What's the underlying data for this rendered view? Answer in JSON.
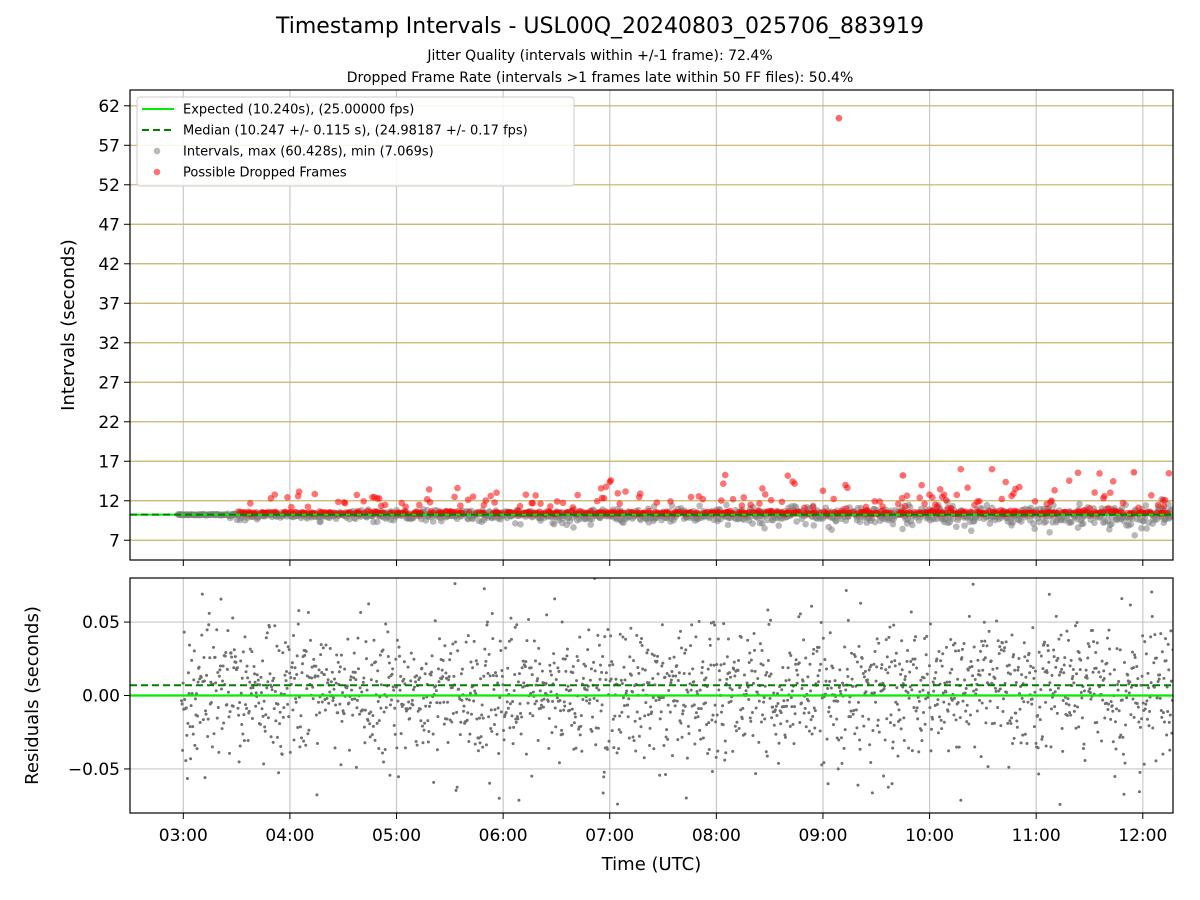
{
  "chart_data": [
    {
      "type": "scatter",
      "title": "Timestamp Intervals - USL00Q_20240803_025706_883919",
      "subtitle_lines": [
        "Jitter Quality (intervals within +/-1 frame): 72.4%",
        "Dropped Frame Rate (intervals >1 frames late within 50 FF files): 50.4%"
      ],
      "ylabel": "Intervals (seconds)",
      "xlabel": "",
      "x_range": [
        "02:30",
        "12:17"
      ],
      "ylim": [
        4.5,
        64
      ],
      "yticks": [
        7,
        12,
        17,
        22,
        27,
        32,
        37,
        42,
        47,
        52,
        57,
        62
      ],
      "xticks": [
        "03:00",
        "04:00",
        "05:00",
        "06:00",
        "07:00",
        "08:00",
        "09:00",
        "10:00",
        "11:00",
        "12:00"
      ],
      "grid": true,
      "legend_placement": "top-left",
      "expected_interval": 10.24,
      "median_interval": 10.247,
      "series": [
        {
          "name": "Expected (10.240s), (25.00000 fps)",
          "type": "line",
          "color": "#00ee00",
          "y": 10.24
        },
        {
          "name": "Median (10.247 +/- 0.115 s), (24.98187 +/- 0.17 fps)",
          "type": "dashed-line",
          "color": "#008000",
          "y": 10.247
        },
        {
          "name": "Intervals, max (60.428s), min (7.069s)",
          "type": "scatter",
          "color": "#808080",
          "max": 60.428,
          "min": 7.069
        },
        {
          "name": "Possible Dropped Frames",
          "type": "scatter",
          "color": "#ff0000",
          "notable_points": [
            {
              "x": "09:09",
              "y": 60.43
            },
            {
              "x": "11:55",
              "y": 15.6
            },
            {
              "x": "09:45",
              "y": 15.2
            },
            {
              "x": "07:00",
              "y": 14.4
            }
          ]
        }
      ]
    },
    {
      "type": "scatter",
      "ylabel": "Residuals (seconds)",
      "xlabel": "Time (UTC)",
      "x_range": [
        "02:30",
        "12:17"
      ],
      "ylim": [
        -0.08,
        0.08
      ],
      "yticks": [
        0.05,
        0.0,
        -0.05
      ],
      "ytick_labels": [
        "0.05",
        "0.00",
        "−0.05"
      ],
      "xticks": [
        "03:00",
        "04:00",
        "05:00",
        "06:00",
        "07:00",
        "08:00",
        "09:00",
        "10:00",
        "11:00",
        "12:00"
      ],
      "grid": true,
      "series": [
        {
          "type": "line",
          "color": "#00ee00",
          "y": 0.0
        },
        {
          "type": "dashed-line",
          "color": "#008000",
          "y": 0.007
        },
        {
          "type": "scatter",
          "color": "#808080",
          "spread": 0.03
        }
      ]
    }
  ]
}
